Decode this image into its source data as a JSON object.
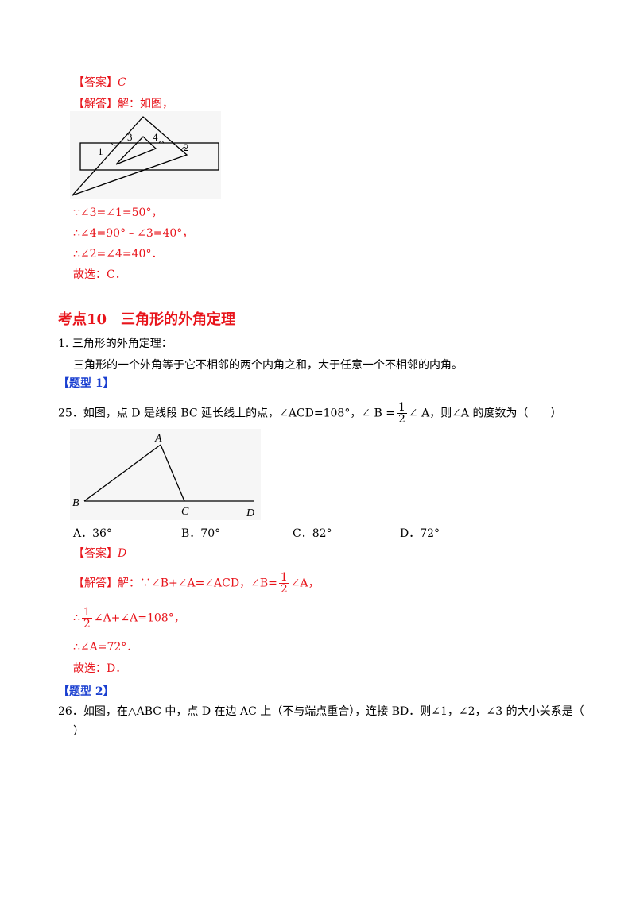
{
  "q24": {
    "answer_tag": "【答案】",
    "answer_value": "C",
    "solution_tag": "【解答】",
    "solution_intro": "解：如图，",
    "figure_labels": [
      "1",
      "3",
      "4",
      "2"
    ],
    "steps": [
      "∵∠3=∠1=50°，",
      "∴∠4=90°﹣∠3=40°，",
      "∴∠2=∠4=40°．",
      "故选：C．"
    ]
  },
  "section": {
    "title": "考点10　三角形的外角定理",
    "item_number": "1.",
    "item_title": "三角形的外角定理：",
    "item_body": "三角形的一个外角等于它不相邻的两个内角之和，大于任意一个不相邻的内角。"
  },
  "type1_label": "【题型 1】",
  "q25": {
    "stem_prefix": "25．如图，点 D 是线段 BC 延长线上的点，∠ACD=108°，∠ B =",
    "frac_num": "1",
    "frac_den": "2",
    "stem_suffix": "∠ A，则∠A 的度数为（　　）",
    "figure_labels": [
      "A",
      "B",
      "C",
      "D"
    ],
    "options": [
      "A．36°",
      "B．70°",
      "C．82°",
      "D．72°"
    ],
    "answer_tag": "【答案】",
    "answer_value": "D",
    "solution_tag": "【解答】",
    "solution_line1_prefix": "解：∵∠B+∠A=∠ACD，∠B=",
    "solution_line1_suffix": "∠A，",
    "step2_prefix": "∴",
    "step2_suffix": "∠A+∠A=108°，",
    "step3": "∴∠A=72°．",
    "step4": "故选：D．"
  },
  "type2_label": "【题型 2】",
  "q26": {
    "stem_line1": "26．如图，在△ABC 中，点 D 在边 AC 上（不与端点重合），连接 BD．则∠1，∠2，∠3 的大小关系是（",
    "stem_line2": "）"
  }
}
